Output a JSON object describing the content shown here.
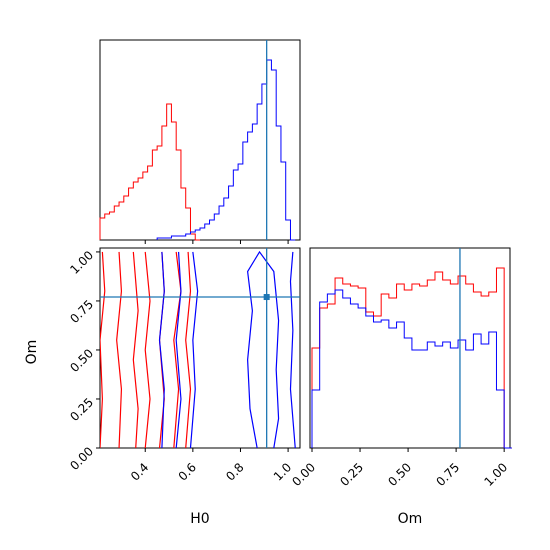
{
  "chart_data": {
    "type": "corner",
    "parameters": [
      "H0",
      "Om"
    ],
    "truth": {
      "H0": 0.91,
      "Om": 0.77
    },
    "colors": {
      "red": "#ff0000",
      "blue": "#0000ff",
      "truth": "#1f77b4"
    },
    "xlabel_bottom_left": "H0",
    "ylabel_bottom_left": "Om",
    "xlabel_bottom_right": "Om",
    "ranges": {
      "H0": [
        0.21,
        1.05
      ],
      "Om": [
        0.0,
        1.02
      ]
    },
    "h0_ticks": [
      "0.4",
      "0.6",
      "0.8",
      "1.0"
    ],
    "om_ticks": [
      "0.00",
      "0.25",
      "0.50",
      "0.75",
      "1.00"
    ],
    "h0_hist_red": [
      {
        "x": 0.21,
        "y": 0.11
      },
      {
        "x": 0.23,
        "y": 0.13
      },
      {
        "x": 0.25,
        "y": 0.14
      },
      {
        "x": 0.27,
        "y": 0.17
      },
      {
        "x": 0.29,
        "y": 0.19
      },
      {
        "x": 0.31,
        "y": 0.22
      },
      {
        "x": 0.33,
        "y": 0.26
      },
      {
        "x": 0.35,
        "y": 0.29
      },
      {
        "x": 0.37,
        "y": 0.31
      },
      {
        "x": 0.39,
        "y": 0.34
      },
      {
        "x": 0.41,
        "y": 0.37
      },
      {
        "x": 0.43,
        "y": 0.45
      },
      {
        "x": 0.45,
        "y": 0.47
      },
      {
        "x": 0.47,
        "y": 0.57
      },
      {
        "x": 0.49,
        "y": 0.68
      },
      {
        "x": 0.51,
        "y": 0.59
      },
      {
        "x": 0.53,
        "y": 0.45
      },
      {
        "x": 0.55,
        "y": 0.26
      },
      {
        "x": 0.57,
        "y": 0.16
      },
      {
        "x": 0.59,
        "y": 0.03
      },
      {
        "x": 0.61,
        "y": 0.0
      }
    ],
    "h0_hist_blue": [
      {
        "x": 0.45,
        "y": 0.01
      },
      {
        "x": 0.47,
        "y": 0.01
      },
      {
        "x": 0.49,
        "y": 0.01
      },
      {
        "x": 0.51,
        "y": 0.02
      },
      {
        "x": 0.53,
        "y": 0.02
      },
      {
        "x": 0.55,
        "y": 0.02
      },
      {
        "x": 0.57,
        "y": 0.03
      },
      {
        "x": 0.59,
        "y": 0.04
      },
      {
        "x": 0.61,
        "y": 0.05
      },
      {
        "x": 0.63,
        "y": 0.06
      },
      {
        "x": 0.65,
        "y": 0.08
      },
      {
        "x": 0.67,
        "y": 0.1
      },
      {
        "x": 0.69,
        "y": 0.13
      },
      {
        "x": 0.71,
        "y": 0.17
      },
      {
        "x": 0.73,
        "y": 0.21
      },
      {
        "x": 0.75,
        "y": 0.27
      },
      {
        "x": 0.77,
        "y": 0.35
      },
      {
        "x": 0.79,
        "y": 0.38
      },
      {
        "x": 0.81,
        "y": 0.49
      },
      {
        "x": 0.83,
        "y": 0.54
      },
      {
        "x": 0.85,
        "y": 0.58
      },
      {
        "x": 0.87,
        "y": 0.68
      },
      {
        "x": 0.89,
        "y": 0.78
      },
      {
        "x": 0.91,
        "y": 0.9
      },
      {
        "x": 0.93,
        "y": 0.85
      },
      {
        "x": 0.95,
        "y": 0.57
      },
      {
        "x": 0.97,
        "y": 0.39
      },
      {
        "x": 0.99,
        "y": 0.1
      },
      {
        "x": 1.01,
        "y": 0.0
      }
    ],
    "om_hist_red": [
      {
        "x": 0.0,
        "y": 0.5
      },
      {
        "x": 0.04,
        "y": 0.7
      },
      {
        "x": 0.08,
        "y": 0.72
      },
      {
        "x": 0.12,
        "y": 0.85
      },
      {
        "x": 0.16,
        "y": 0.82
      },
      {
        "x": 0.2,
        "y": 0.81
      },
      {
        "x": 0.24,
        "y": 0.8
      },
      {
        "x": 0.28,
        "y": 0.68
      },
      {
        "x": 0.32,
        "y": 0.66
      },
      {
        "x": 0.36,
        "y": 0.77
      },
      {
        "x": 0.4,
        "y": 0.75
      },
      {
        "x": 0.44,
        "y": 0.82
      },
      {
        "x": 0.48,
        "y": 0.79
      },
      {
        "x": 0.52,
        "y": 0.82
      },
      {
        "x": 0.56,
        "y": 0.81
      },
      {
        "x": 0.6,
        "y": 0.84
      },
      {
        "x": 0.64,
        "y": 0.88
      },
      {
        "x": 0.68,
        "y": 0.84
      },
      {
        "x": 0.72,
        "y": 0.82
      },
      {
        "x": 0.76,
        "y": 0.86
      },
      {
        "x": 0.8,
        "y": 0.82
      },
      {
        "x": 0.84,
        "y": 0.78
      },
      {
        "x": 0.88,
        "y": 0.76
      },
      {
        "x": 0.92,
        "y": 0.78
      },
      {
        "x": 0.96,
        "y": 0.9
      },
      {
        "x": 1.0,
        "y": 0.0
      }
    ],
    "om_hist_blue": [
      {
        "x": 0.0,
        "y": 0.29
      },
      {
        "x": 0.04,
        "y": 0.73
      },
      {
        "x": 0.08,
        "y": 0.77
      },
      {
        "x": 0.12,
        "y": 0.79
      },
      {
        "x": 0.16,
        "y": 0.75
      },
      {
        "x": 0.2,
        "y": 0.72
      },
      {
        "x": 0.24,
        "y": 0.7
      },
      {
        "x": 0.28,
        "y": 0.66
      },
      {
        "x": 0.32,
        "y": 0.63
      },
      {
        "x": 0.36,
        "y": 0.64
      },
      {
        "x": 0.4,
        "y": 0.6
      },
      {
        "x": 0.44,
        "y": 0.63
      },
      {
        "x": 0.48,
        "y": 0.55
      },
      {
        "x": 0.52,
        "y": 0.49
      },
      {
        "x": 0.56,
        "y": 0.49
      },
      {
        "x": 0.6,
        "y": 0.53
      },
      {
        "x": 0.64,
        "y": 0.51
      },
      {
        "x": 0.68,
        "y": 0.53
      },
      {
        "x": 0.72,
        "y": 0.5
      },
      {
        "x": 0.76,
        "y": 0.54
      },
      {
        "x": 0.8,
        "y": 0.49
      },
      {
        "x": 0.84,
        "y": 0.57
      },
      {
        "x": 0.88,
        "y": 0.52
      },
      {
        "x": 0.92,
        "y": 0.58
      },
      {
        "x": 0.96,
        "y": 0.29
      },
      {
        "x": 1.0,
        "y": 0.0
      }
    ],
    "contours_red": [
      [
        [
          0.21,
          0.0
        ],
        [
          0.22,
          0.25
        ],
        [
          0.21,
          0.55
        ],
        [
          0.23,
          0.8
        ],
        [
          0.22,
          1.0
        ]
      ],
      [
        [
          0.29,
          0.0
        ],
        [
          0.3,
          0.3
        ],
        [
          0.28,
          0.55
        ],
        [
          0.3,
          0.8
        ],
        [
          0.29,
          1.0
        ]
      ],
      [
        [
          0.36,
          0.0
        ],
        [
          0.37,
          0.2
        ],
        [
          0.35,
          0.45
        ],
        [
          0.37,
          0.7
        ],
        [
          0.35,
          1.0
        ]
      ],
      [
        [
          0.4,
          0.0
        ],
        [
          0.42,
          0.25
        ],
        [
          0.4,
          0.5
        ],
        [
          0.42,
          0.75
        ],
        [
          0.4,
          1.0
        ]
      ],
      [
        [
          0.46,
          0.0
        ],
        [
          0.48,
          0.25
        ],
        [
          0.46,
          0.55
        ],
        [
          0.48,
          0.8
        ],
        [
          0.47,
          1.0
        ]
      ],
      [
        [
          0.52,
          0.0
        ],
        [
          0.54,
          0.3
        ],
        [
          0.52,
          0.55
        ],
        [
          0.55,
          0.8
        ],
        [
          0.53,
          1.0
        ]
      ],
      [
        [
          0.57,
          0.0
        ],
        [
          0.59,
          0.3
        ],
        [
          0.57,
          0.55
        ],
        [
          0.59,
          0.8
        ],
        [
          0.58,
          1.0
        ]
      ]
    ],
    "contours_blue": [
      [
        [
          0.47,
          0.0
        ],
        [
          0.48,
          0.3
        ],
        [
          0.46,
          0.55
        ],
        [
          0.48,
          0.8
        ],
        [
          0.47,
          1.0
        ]
      ],
      [
        [
          0.53,
          0.0
        ],
        [
          0.55,
          0.25
        ],
        [
          0.53,
          0.55
        ],
        [
          0.55,
          0.8
        ],
        [
          0.54,
          1.0
        ]
      ],
      [
        [
          0.59,
          0.0
        ],
        [
          0.61,
          0.3
        ],
        [
          0.6,
          0.55
        ],
        [
          0.62,
          0.8
        ],
        [
          0.6,
          1.0
        ]
      ],
      [
        [
          0.87,
          0.0
        ],
        [
          0.84,
          0.2
        ],
        [
          0.83,
          0.45
        ],
        [
          0.85,
          0.7
        ],
        [
          0.83,
          0.9
        ],
        [
          0.88,
          1.0
        ],
        [
          0.94,
          0.9
        ],
        [
          0.96,
          0.65
        ],
        [
          0.95,
          0.4
        ],
        [
          0.96,
          0.15
        ],
        [
          0.94,
          0.0
        ]
      ],
      [
        [
          1.03,
          0.0
        ],
        [
          1.01,
          0.3
        ],
        [
          1.02,
          0.6
        ],
        [
          1.01,
          0.85
        ],
        [
          1.02,
          1.0
        ]
      ]
    ]
  }
}
